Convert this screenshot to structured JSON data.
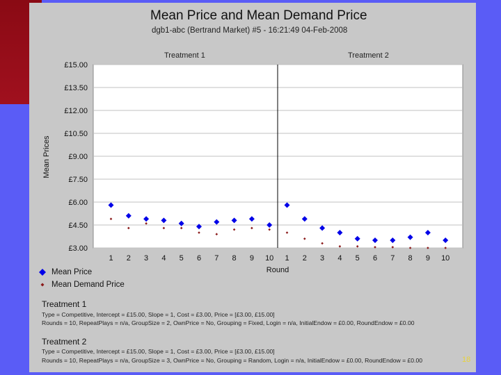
{
  "chart_data": {
    "type": "scatter",
    "title": "Mean Price and Mean Demand Price",
    "subtitle": "dgb1-abc (Bertrand Market) #5 - 16:21:49 04-Feb-2008",
    "ylabel": "Mean Prices",
    "xlabel": "Round",
    "ylim": [
      3.0,
      15.0
    ],
    "y_ticks": [
      "£15.00",
      "£13.50",
      "£12.00",
      "£10.50",
      "£9.00",
      "£7.50",
      "£6.00",
      "£4.50",
      "£3.00"
    ],
    "y_tick_values": [
      15.0,
      13.5,
      12.0,
      10.5,
      9.0,
      7.5,
      6.0,
      4.5,
      3.0
    ],
    "treatments": [
      "Treatment 1",
      "Treatment 2"
    ],
    "categories": [
      "1",
      "2",
      "3",
      "4",
      "5",
      "6",
      "7",
      "8",
      "9",
      "10",
      "1",
      "2",
      "3",
      "4",
      "5",
      "6",
      "7",
      "8",
      "9",
      "10"
    ],
    "series": [
      {
        "name": "Mean Price",
        "color": "#0000e8",
        "values": [
          5.8,
          5.1,
          4.9,
          4.8,
          4.6,
          4.4,
          4.7,
          4.8,
          4.9,
          4.5,
          5.8,
          4.9,
          4.3,
          4.0,
          3.6,
          3.5,
          3.5,
          3.7,
          4.0,
          3.5
        ]
      },
      {
        "name": "Mean Demand Price",
        "color": "#8b1a1a",
        "values": [
          4.9,
          4.3,
          4.6,
          4.3,
          4.3,
          4.0,
          3.9,
          4.2,
          4.3,
          4.2,
          4.0,
          3.6,
          3.3,
          3.1,
          3.1,
          3.05,
          3.05,
          3.0,
          3.0,
          3.0
        ]
      }
    ]
  },
  "legend": {
    "mean_price": "Mean Price",
    "mean_demand_price": "Mean Demand Price"
  },
  "treatment_notes": {
    "t1_heading": "Treatment 1",
    "t1_line1": "Type = Competitive, Intercept = £15.00, Slope = 1, Cost = £3.00, Price = [£3.00, £15.00]",
    "t1_line2": "Rounds = 10, RepeatPlays = n/a, GroupSize = 2, OwnPrice = No, Grouping = Fixed, Login = n/a, InitialEndow = £0.00, RoundEndow = £0.00",
    "t2_heading": "Treatment 2",
    "t2_line1": "Type = Competitive, Intercept = £15.00, Slope = 1, Cost = £3.00, Price = [£3.00, £15.00]",
    "t2_line2": "Rounds = 10, RepeatPlays = n/a, GroupSize = 3, OwnPrice = No, Grouping = Random, Login = n/a, InitialEndow = £0.00, RoundEndow = £0.00"
  },
  "page_number": "18"
}
